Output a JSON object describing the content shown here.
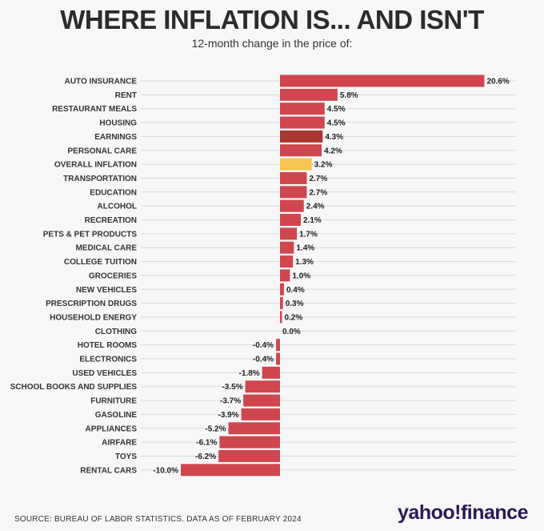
{
  "title": "WHERE INFLATION IS... AND ISN'T",
  "subtitle": "12-month change in the price of:",
  "source": "SOURCE: BUREAU OF LABOR STATISTICS. DATA AS OF FEBRUARY 2024",
  "logo": "yahoo!finance",
  "colors": {
    "bar": "#d0464f",
    "earnings": "#a8372f",
    "overall": "#f5c651",
    "background": "#f7f7f7",
    "grid": "#d9d9d9"
  },
  "chart_data": {
    "type": "bar",
    "orientation": "horizontal",
    "unit": "%",
    "xlim": [
      -10,
      20.6
    ],
    "grid": true,
    "categories": [
      "AUTO INSURANCE",
      "RENT",
      "RESTAURANT MEALS",
      "HOUSING",
      "EARNINGS",
      "PERSONAL CARE",
      "OVERALL INFLATION",
      "TRANSPORTATION",
      "EDUCATION",
      "ALCOHOL",
      "RECREATION",
      "PETS & PET PRODUCTS",
      "MEDICAL CARE",
      "COLLEGE TUITION",
      "GROCERIES",
      "NEW VEHICLES",
      "PRESCRIPTION DRUGS",
      "HOUSEHOLD ENERGY",
      "CLOTHING",
      "HOTEL ROOMS",
      "ELECTRONICS",
      "USED VEHICLES",
      "SCHOOL BOOKS AND SUPPLIES",
      "FURNITURE",
      "GASOLINE",
      "APPLIANCES",
      "AIRFARE",
      "TOYS",
      "RENTAL CARS"
    ],
    "values": [
      20.6,
      5.8,
      4.5,
      4.5,
      4.3,
      4.2,
      3.2,
      2.7,
      2.7,
      2.4,
      2.1,
      1.7,
      1.4,
      1.3,
      1.0,
      0.4,
      0.3,
      0.2,
      0.0,
      -0.4,
      -0.4,
      -1.8,
      -3.5,
      -3.7,
      -3.9,
      -5.2,
      -6.1,
      -6.2,
      -10.0
    ],
    "labels": [
      "20.6%",
      "5.8%",
      "4.5%",
      "4.5%",
      "4.3%",
      "4.2%",
      "3.2%",
      "2.7%",
      "2.7%",
      "2.4%",
      "2.1%",
      "1.7%",
      "1.4%",
      "1.3%",
      "1.0%",
      "0.4%",
      "0.3%",
      "0.2%",
      "0.0%",
      "-0.4%",
      "-0.4%",
      "-1.8%",
      "-3.5%",
      "-3.7%",
      "-3.9%",
      "-5.2%",
      "-6.1%",
      "-6.2%",
      "-10.0%"
    ],
    "highlight": {
      "EARNINGS": "earnings",
      "OVERALL INFLATION": "overall"
    }
  }
}
